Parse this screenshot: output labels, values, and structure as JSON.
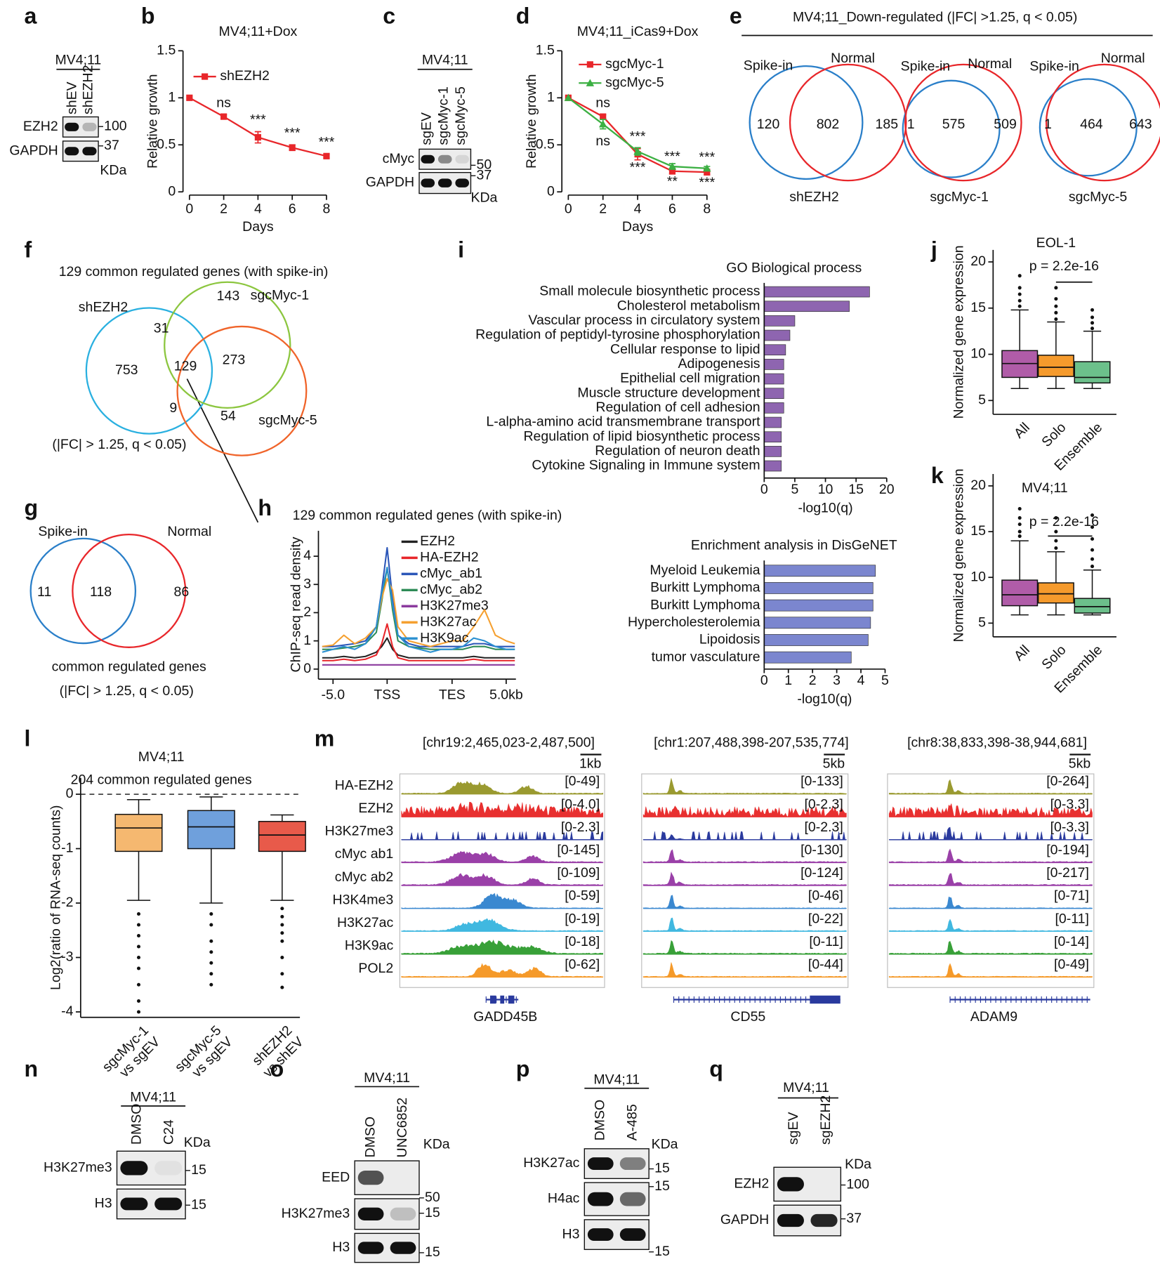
{
  "a": {
    "label": "a",
    "cell": "MV4;11",
    "lanes": [
      "shEV",
      "shEZH2"
    ],
    "rows": [
      {
        "name": "EZH2",
        "marker": "100"
      },
      {
        "name": "GAPDH",
        "marker": "37"
      }
    ],
    "unit": "KDa"
  },
  "b": {
    "label": "b",
    "type": "line",
    "title": "MV4;11+Dox",
    "xlabel": "Days",
    "ylabel": "Relative growth",
    "x": [
      0,
      2,
      4,
      6,
      8
    ],
    "xlim": [
      0,
      8
    ],
    "xticks": [
      0,
      2,
      4,
      6,
      8
    ],
    "ylim": [
      0,
      1.5
    ],
    "yticks": [
      0,
      0.5,
      1,
      1.5
    ],
    "series": [
      {
        "name": "shEZH2",
        "color": "#e8262a",
        "marker": "square",
        "values": [
          1,
          0.8,
          0.58,
          0.47,
          0.38
        ],
        "errors": [
          0,
          0.02,
          0.06,
          0.03,
          0.02
        ],
        "annotations": [
          null,
          "ns",
          "***",
          "***",
          "***"
        ],
        "annotation_side": "above"
      }
    ]
  },
  "c": {
    "label": "c",
    "cell": "MV4;11",
    "lanes": [
      "sgEV",
      "sgcMyc-1",
      "sgcMyc-5"
    ],
    "rows": [
      {
        "name": "cMyc",
        "marker": "50"
      },
      {
        "name": "GAPDH",
        "marker": "37"
      }
    ],
    "unit": "KDa"
  },
  "d": {
    "label": "d",
    "type": "line",
    "title": "MV4;11_iCas9+Dox",
    "xlabel": "Days",
    "ylabel": "Relative growth",
    "x": [
      0,
      2,
      4,
      6,
      8
    ],
    "xlim": [
      0,
      8
    ],
    "xticks": [
      0,
      2,
      4,
      6,
      8
    ],
    "ylim": [
      0,
      1.5
    ],
    "yticks": [
      0,
      0.5,
      1,
      1.5
    ],
    "series": [
      {
        "name": "sgcMyc-1",
        "color": "#e8262a",
        "marker": "square",
        "values": [
          1,
          0.8,
          0.4,
          0.22,
          0.21
        ],
        "errors": [
          0,
          0.02,
          0.06,
          0.03,
          0.03
        ],
        "annotations": [
          null,
          "ns",
          "***",
          "***",
          "***"
        ],
        "annotation_side": "above"
      },
      {
        "name": "sgcMyc-5",
        "color": "#3cb043",
        "marker": "triangle",
        "values": [
          1,
          0.72,
          0.43,
          0.27,
          0.25
        ],
        "errors": [
          0,
          0.05,
          0.04,
          0.03,
          0.02
        ],
        "annotations": [
          null,
          "ns",
          "***",
          "**",
          "***"
        ],
        "annotation_side": "below"
      }
    ]
  },
  "e": {
    "label": "e",
    "title": "MV4;11_Down-regulated (|FC| >1.25, q < 0.05)",
    "venns": [
      {
        "left": "Spike-in",
        "right": "Normal",
        "counts": [
          120,
          802,
          185
        ],
        "name": "shEZH2"
      },
      {
        "left": "Spike-in",
        "right": "Normal",
        "counts": [
          1,
          575,
          509
        ],
        "name": "sgcMyc-1"
      },
      {
        "left": "Spike-in",
        "right": "Normal",
        "counts": [
          1,
          464,
          643
        ],
        "name": "sgcMyc-5"
      }
    ]
  },
  "f": {
    "label": "f",
    "title": "129 common regulated genes (with spike-in)",
    "sets": [
      "shEZH2",
      "sgcMyc-1",
      "sgcMyc-5"
    ],
    "counts": [
      753,
      143,
      31,
      129,
      273,
      9,
      54
    ],
    "note": "(|FC| > 1.25, q < 0.05)"
  },
  "g": {
    "label": "g",
    "left": "Spike-in",
    "right": "Normal",
    "counts": [
      11,
      118,
      86
    ],
    "caption": "common regulated genes",
    "note": "(|FC| > 1.25, q < 0.05)"
  },
  "h": {
    "label": "h",
    "type": "line",
    "title": "129 common regulated genes (with spike-in)",
    "ylabel": "ChIP-seq read density",
    "x": [
      -6,
      -5,
      -4,
      -3,
      -2,
      -1,
      -0.5,
      0,
      0.5,
      1,
      2,
      3,
      4,
      5,
      6,
      7,
      8,
      9,
      10,
      11,
      11.8
    ],
    "xlim": [
      -6.2,
      11.9
    ],
    "xticks": [
      {
        "value": -5,
        "label": "-5.0"
      },
      {
        "value": 0,
        "label": "TSS"
      },
      {
        "value": 6,
        "label": "TES"
      },
      {
        "value": 11,
        "label": "5.0kb"
      }
    ],
    "ylim": [
      -0.3,
      4.9
    ],
    "yticks": [
      0,
      1,
      2,
      3,
      4
    ],
    "series": [
      {
        "name": "EZH2",
        "color": "#222222",
        "values": [
          0.4,
          0.4,
          0.45,
          0.4,
          0.45,
          0.6,
          0.8,
          1.1,
          0.7,
          0.5,
          0.4,
          0.4,
          0.4,
          0.4,
          0.4,
          0.4,
          0.45,
          0.4,
          0.4,
          0.4,
          0.4
        ]
      },
      {
        "name": "HA-EZH2",
        "color": "#e8262a",
        "values": [
          0.3,
          0.3,
          0.35,
          0.3,
          0.35,
          0.5,
          0.9,
          1.6,
          0.8,
          0.4,
          0.3,
          0.3,
          0.3,
          0.3,
          0.3,
          0.3,
          0.35,
          0.3,
          0.3,
          0.3,
          0.3
        ]
      },
      {
        "name": "cMyc_ab1",
        "color": "#2b56b8",
        "values": [
          0.8,
          0.8,
          0.85,
          0.9,
          1.0,
          1.5,
          2.8,
          4.3,
          2.5,
          1.2,
          0.9,
          0.8,
          0.8,
          0.8,
          0.8,
          0.8,
          0.9,
          0.9,
          0.8,
          0.8,
          0.8
        ]
      },
      {
        "name": "cMyc_ab2",
        "color": "#2e8b57",
        "values": [
          0.7,
          0.7,
          0.75,
          0.8,
          0.9,
          1.3,
          2.4,
          3.6,
          2.1,
          1.0,
          0.8,
          0.75,
          0.7,
          0.7,
          0.7,
          0.7,
          0.8,
          0.8,
          0.7,
          0.7,
          0.7
        ]
      },
      {
        "name": "H3K27me3",
        "color": "#8b3a9e",
        "values": [
          0.15,
          0.15,
          0.15,
          0.15,
          0.15,
          0.15,
          0.15,
          0.15,
          0.15,
          0.15,
          0.15,
          0.15,
          0.15,
          0.15,
          0.15,
          0.15,
          0.15,
          0.15,
          0.15,
          0.15,
          0.15
        ]
      },
      {
        "name": "H3K27ac",
        "color": "#f5a030",
        "values": [
          0.8,
          0.85,
          1.2,
          0.9,
          1.1,
          1.5,
          2.5,
          3.2,
          2.8,
          1.5,
          1.0,
          0.9,
          0.8,
          0.9,
          1.0,
          1.0,
          1.5,
          2.1,
          1.2,
          1.0,
          0.9
        ]
      },
      {
        "name": "H3K9ac",
        "color": "#2a8fd0",
        "values": [
          0.6,
          0.7,
          0.8,
          0.7,
          0.9,
          1.5,
          2.7,
          3.6,
          2.3,
          1.2,
          0.8,
          0.7,
          0.6,
          0.7,
          0.7,
          0.8,
          1.1,
          1.0,
          0.8,
          0.7,
          0.7
        ]
      }
    ]
  },
  "i": {
    "label": "i",
    "charts": [
      {
        "type": "bar",
        "title": "GO Biological process",
        "xlabel": "-log10(q)",
        "color": "#8e65b0",
        "xlim": [
          0,
          20
        ],
        "xticks": [
          0,
          5,
          10,
          15,
          20
        ],
        "categories": [
          "Small molecule biosynthetic process",
          "Cholesterol metabolism",
          "Vascular process in circulatory system",
          "Regulation of peptidyl-tyrosine phosphorylation",
          "Cellular response to lipid",
          "Adipogenesis",
          "Epithelial cell migration",
          "Muscle structure development",
          "Regulation of cell adhesion",
          "L-alpha-amino acid transmembrane transport",
          "Regulation of lipid biosynthetic process",
          "Regulation of neuron death",
          "Cytokine Signaling in Immune system"
        ],
        "values": [
          17.2,
          13.9,
          5.0,
          4.2,
          3.5,
          3.2,
          3.2,
          3.2,
          3.2,
          2.8,
          2.8,
          2.8,
          2.8
        ]
      },
      {
        "type": "bar",
        "title": "Enrichment analysis in DisGeNET",
        "xlabel": "-log10(q)",
        "color": "#7b86cf",
        "xlim": [
          0,
          5
        ],
        "xticks": [
          0,
          1,
          2,
          3,
          4,
          5
        ],
        "categories": [
          "Myeloid Leukemia",
          "Burkitt Lymphoma",
          "Burkitt Lymphoma",
          "Hypercholesterolemia",
          "Lipoidosis",
          "tumor vasculature"
        ],
        "values": [
          4.6,
          4.5,
          4.5,
          4.4,
          4.3,
          3.6
        ]
      }
    ]
  },
  "j": {
    "label": "j",
    "type": "box",
    "title": "EOL-1",
    "ylabel": "Normalized gene expression",
    "pvalue": "p = 2.2e-16",
    "categories": [
      "All",
      "Solo",
      "Ensemble"
    ],
    "colors": [
      "#b05ca8",
      "#f59a2c",
      "#6cc08b"
    ],
    "ylim": [
      3.5,
      21.3
    ],
    "yticks": [
      5,
      10,
      15,
      20
    ],
    "boxes": [
      {
        "whislo": 6.3,
        "q1": 7.5,
        "med": 9.0,
        "q3": 10.4,
        "whishi": 14.8,
        "fliers": [
          15.2,
          15.8,
          16.5,
          17.2,
          18.5
        ]
      },
      {
        "whislo": 6.3,
        "q1": 7.6,
        "med": 8.6,
        "q3": 9.9,
        "whishi": 13.5,
        "fliers": [
          13.8,
          14.5,
          15.2,
          16,
          17.2
        ]
      },
      {
        "whislo": 6.3,
        "q1": 6.9,
        "med": 7.5,
        "q3": 9.2,
        "whishi": 12.5,
        "fliers": [
          12.8,
          13.4,
          14,
          14.8
        ]
      }
    ]
  },
  "k": {
    "label": "k",
    "type": "box",
    "title": "MV4;11",
    "ylabel": "Normalized gene expression",
    "pvalue": "p = 2.2e-16",
    "categories": [
      "All",
      "Solo",
      "Ensemble"
    ],
    "colors": [
      "#b05ca8",
      "#f59a2c",
      "#6cc08b"
    ],
    "ylim": [
      3.5,
      21.3
    ],
    "yticks": [
      5,
      10,
      15,
      20
    ],
    "boxes": [
      {
        "whislo": 5.9,
        "q1": 6.9,
        "med": 8.1,
        "q3": 9.7,
        "whishi": 14,
        "fliers": [
          14.5,
          15,
          15.8,
          16.5,
          17.5
        ]
      },
      {
        "whislo": 5.9,
        "q1": 7.2,
        "med": 8.2,
        "q3": 9.4,
        "whishi": 12.8,
        "fliers": [
          13.2,
          14,
          15,
          16.5
        ]
      },
      {
        "whislo": 5.9,
        "q1": 6.1,
        "med": 6.8,
        "q3": 7.7,
        "whishi": 10.8,
        "fliers": [
          11.2,
          12,
          13,
          14.2,
          15.5,
          16.8
        ]
      }
    ]
  },
  "l": {
    "label": "l",
    "type": "box",
    "title": "MV4;11",
    "subtitle": "204 common regulated genes",
    "ylabel": "Log2(ratio of RNA-seq counts)",
    "categories": [
      [
        "sgcMyc-1",
        "vs sgEV"
      ],
      [
        "sgcMyc-5",
        "vs sgEV"
      ],
      [
        "shEZH2",
        "vs shEV"
      ]
    ],
    "colors": [
      "#f5b870",
      "#6fa0dc",
      "#e85a4a"
    ],
    "ylim": [
      -4.1,
      0.3
    ],
    "yticks": [
      -4,
      -3,
      -2,
      -1,
      0
    ],
    "hline": 0,
    "boxes": [
      {
        "whislo": -1.95,
        "q1": -1.05,
        "med": -0.62,
        "q3": -0.37,
        "whishi": -0.1,
        "fliers": [
          -2.2,
          -2.4,
          -2.6,
          -2.8,
          -3.0,
          -3.2,
          -3.5,
          -3.8,
          -4.0
        ]
      },
      {
        "whislo": -2.0,
        "q1": -1.0,
        "med": -0.6,
        "q3": -0.3,
        "whishi": -0.05,
        "fliers": [
          -2.2,
          -2.4,
          -2.7,
          -2.9,
          -3.1,
          -3.3,
          -3.5
        ]
      },
      {
        "whislo": -1.95,
        "q1": -1.05,
        "med": -0.75,
        "q3": -0.5,
        "whishi": -0.38,
        "fliers": [
          -2.1,
          -2.25,
          -2.4,
          -2.55,
          -2.7,
          -3.0,
          -3.3,
          -3.55
        ]
      }
    ]
  },
  "m": {
    "label": "m",
    "tracks": [
      "HA-EZH2",
      "EZH2",
      "H3K27me3",
      "cMyc ab1",
      "cMyc ab2",
      "H3K4me3",
      "H3K27ac",
      "H3K9ac",
      "POL2"
    ],
    "colors": [
      "#9a9a30",
      "#e83030",
      "#2a3a9e",
      "#9a40a8",
      "#9a40a8",
      "#3a88d0",
      "#40b8e0",
      "#38a038",
      "#f59a2a"
    ],
    "regions": [
      {
        "coords": "[chr19:2,465,023-2,487,500]",
        "scale": "1kb",
        "gene": "GADD45B",
        "ranges": [
          "[0-49]",
          "[0-4.0]",
          "[0-2.3]",
          "[0-145]",
          "[0-109]",
          "[0-59]",
          "[0-19]",
          "[0-18]",
          "[0-62]"
        ]
      },
      {
        "coords": "[chr1:207,488,398-207,535,774]",
        "scale": "5kb",
        "gene": "CD55",
        "ranges": [
          "[0-133]",
          "[0-2.3]",
          "[0-2.3]",
          "[0-130]",
          "[0-124]",
          "[0-46]",
          "[0-22]",
          "[0-11]",
          "[0-44]"
        ]
      },
      {
        "coords": "[chr8:38,833,398-38,944,681]",
        "scale": "5kb",
        "gene": "ADAM9",
        "ranges": [
          "[0-264]",
          "[0-3.3]",
          "[0-3.3]",
          "[0-194]",
          "[0-217]",
          "[0-71]",
          "[0-11]",
          "[0-14]",
          "[0-49]"
        ]
      }
    ]
  },
  "n": {
    "label": "n",
    "cell": "MV4;11",
    "lanes": [
      "DMSO",
      "C24"
    ],
    "rows": [
      {
        "name": "H3K27me3",
        "marker": "15"
      },
      {
        "name": "H3",
        "marker": "15"
      }
    ],
    "unit": "KDa"
  },
  "o": {
    "label": "o",
    "cell": "MV4;11",
    "lanes": [
      "DMSO",
      "UNC6852"
    ],
    "rows": [
      {
        "name": "EED",
        "marker": "50"
      },
      {
        "name": "H3K27me3",
        "marker": "15"
      },
      {
        "name": "H3",
        "marker": "15"
      }
    ],
    "unit": "KDa"
  },
  "p": {
    "label": "p",
    "cell": "MV4;11",
    "lanes": [
      "DMSO",
      "A-485"
    ],
    "rows": [
      {
        "name": "H3K27ac",
        "marker": "15"
      },
      {
        "name": "H4ac",
        "marker": "15"
      },
      {
        "name": "H3",
        "marker": "15"
      }
    ],
    "unit": "KDa"
  },
  "q": {
    "label": "q",
    "cell": "MV4;11",
    "lanes": [
      "sgEV",
      "sgEZH2"
    ],
    "rows": [
      {
        "name": "EZH2",
        "marker": "100"
      },
      {
        "name": "GAPDH",
        "marker": "37"
      }
    ],
    "unit": "KDa"
  }
}
